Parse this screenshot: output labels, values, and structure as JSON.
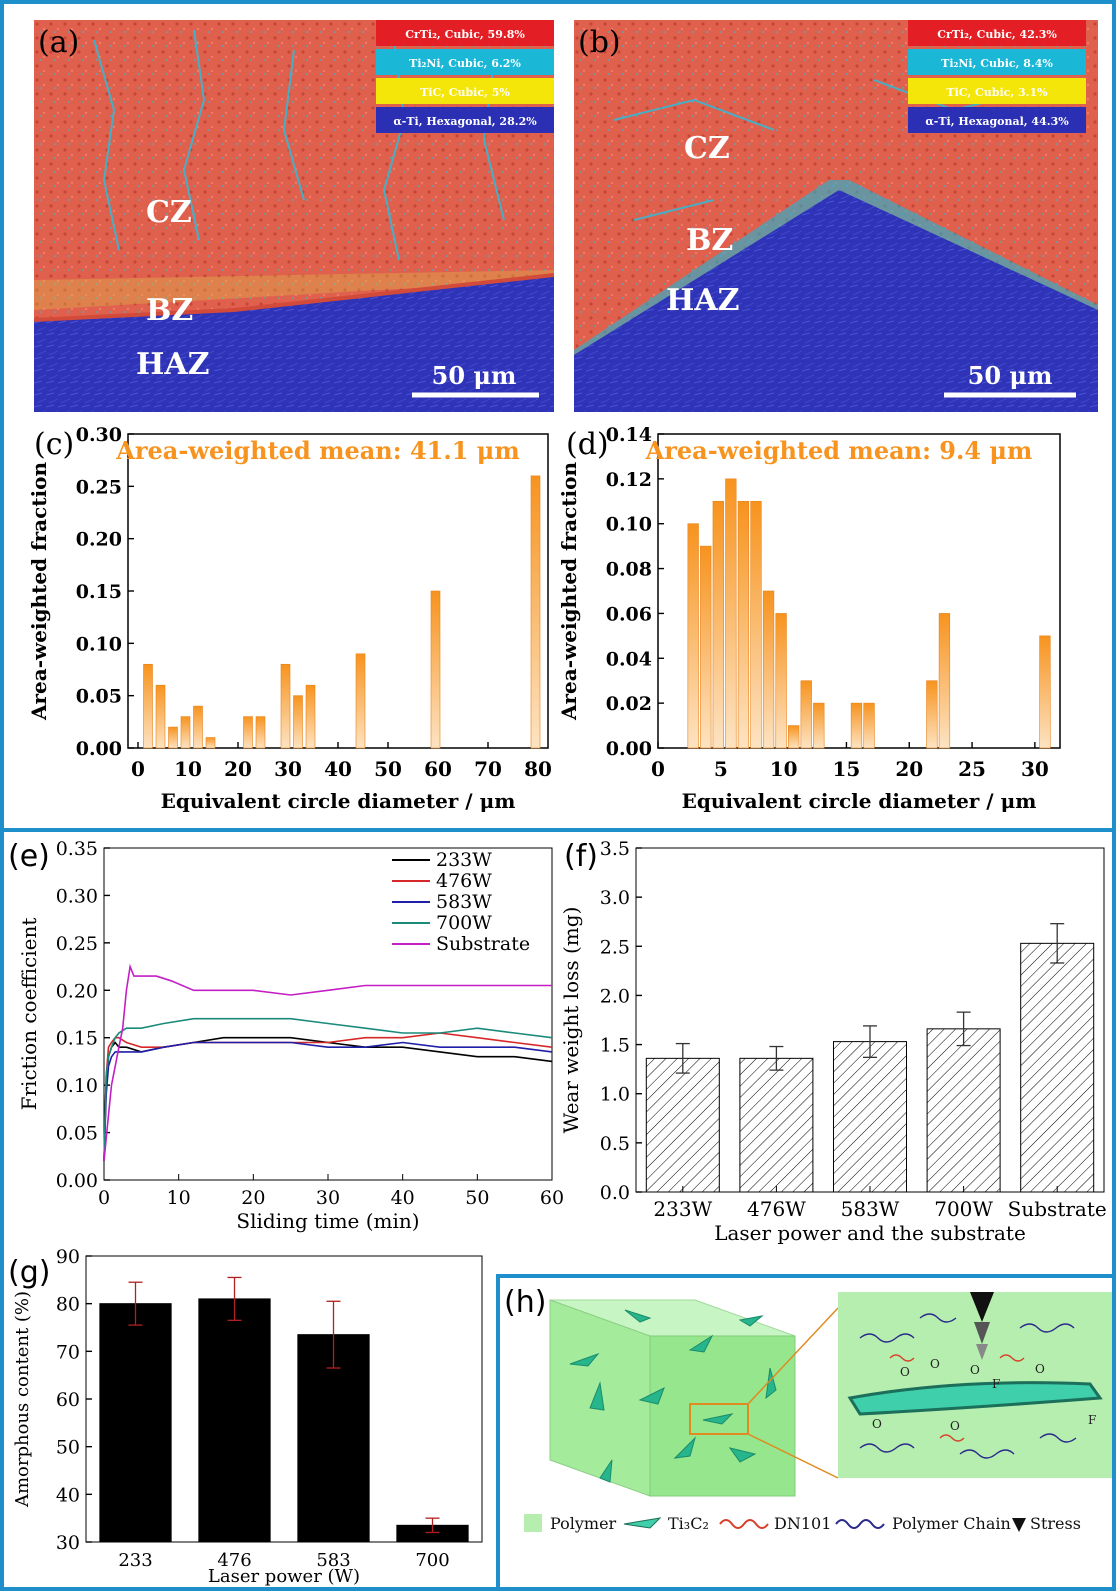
{
  "panels": {
    "a": {
      "letter": "(a)",
      "legend": [
        {
          "label": "CrTi₂, Cubic, 59.8%",
          "color": "#e31e24"
        },
        {
          "label": "Ti₂Ni, Cubic, 6.2%",
          "color": "#1ab8d6"
        },
        {
          "label": "TiC, Cubic, 5%",
          "color": "#f5e60a"
        },
        {
          "label": "α-Ti, Hexagonal, 28.2%",
          "color": "#2b2fb3"
        }
      ],
      "zones": {
        "cz": "CZ",
        "bz": "BZ",
        "haz": "HAZ"
      },
      "scale": "50 μm"
    },
    "b": {
      "letter": "(b)",
      "legend": [
        {
          "label": "CrTi₂, Cubic, 42.3%",
          "color": "#e31e24"
        },
        {
          "label": "Ti₂Ni, Cubic, 8.4%",
          "color": "#1ab8d6"
        },
        {
          "label": "TiC, Cubic, 3.1%",
          "color": "#f5e60a"
        },
        {
          "label": "α-Ti, Hexagonal, 44.3%",
          "color": "#2b2fb3"
        }
      ],
      "zones": {
        "cz": "CZ",
        "bz": "BZ",
        "haz": "HAZ"
      },
      "scale": "50 μm"
    },
    "c": {
      "letter": "(c)"
    },
    "d": {
      "letter": "(d)"
    },
    "e": {
      "letter": "(e)"
    },
    "f": {
      "letter": "(f)"
    },
    "g": {
      "letter": "(g)"
    },
    "h": {
      "letter": "(h)",
      "legend": [
        {
          "label": "Polymer",
          "icon": "polymer-swatch-icon"
        },
        {
          "label": "Ti₃C₂",
          "icon": "mxene-flake-icon"
        },
        {
          "label": "DN101",
          "icon": "dn101-chain-icon"
        },
        {
          "label": "Polymer Chain",
          "icon": "polymer-chain-icon"
        },
        {
          "label": "Stress",
          "icon": "stress-arrow-icon"
        }
      ],
      "atoms": {
        "o": "O",
        "f": "F"
      }
    }
  },
  "chart_data": [
    {
      "id": "c",
      "type": "bar",
      "title": "Area-weighted mean: 41.1 μm",
      "xlabel": "Equivalent circle diameter / μm",
      "ylabel": "Area-weighted fraction",
      "xlim": [
        -2,
        82
      ],
      "ylim": [
        0,
        0.3
      ],
      "xticks": [
        0,
        10,
        20,
        30,
        40,
        50,
        60,
        70,
        80
      ],
      "yticks": [
        0.0,
        0.05,
        0.1,
        0.15,
        0.2,
        0.25,
        0.3
      ],
      "bar_width": 1.8,
      "color": "#f7931e",
      "x": [
        2,
        4.5,
        7,
        9.5,
        12,
        14.5,
        17,
        22,
        24.5,
        29.5,
        32,
        34.5,
        44.5,
        59.5,
        79.5
      ],
      "values": [
        0.08,
        0.06,
        0.02,
        0.03,
        0.04,
        0.01,
        0,
        0.03,
        0.03,
        0.08,
        0.05,
        0.06,
        0.09,
        0.15,
        0.26
      ]
    },
    {
      "id": "d",
      "type": "bar",
      "title": "Area-weighted mean: 9.4 μm",
      "xlabel": "Equivalent circle diameter / μm",
      "ylabel": "Area-weighted fraction",
      "xlim": [
        0,
        32
      ],
      "ylim": [
        0,
        0.14
      ],
      "xticks": [
        0,
        5,
        10,
        15,
        20,
        25,
        30
      ],
      "yticks": [
        0.0,
        0.02,
        0.04,
        0.06,
        0.08,
        0.1,
        0.12,
        0.14
      ],
      "bar_width": 0.85,
      "color": "#f7931e",
      "x": [
        2.8,
        3.8,
        4.8,
        5.8,
        6.8,
        7.8,
        8.8,
        9.8,
        10.8,
        11.8,
        12.8,
        13.8,
        15.8,
        16.8,
        21.8,
        22.8,
        30.8
      ],
      "values": [
        0.1,
        0.09,
        0.11,
        0.12,
        0.11,
        0.11,
        0.07,
        0.06,
        0.01,
        0.03,
        0.02,
        0,
        0.02,
        0.02,
        0.03,
        0.06,
        0.05
      ]
    },
    {
      "id": "e",
      "type": "line",
      "xlabel": "Sliding time (min)",
      "ylabel": "Friction coefficient",
      "xlim": [
        0,
        60
      ],
      "ylim": [
        0,
        0.35
      ],
      "xticks": [
        0,
        10,
        20,
        30,
        40,
        50,
        60
      ],
      "yticks": [
        0,
        0.05,
        0.1,
        0.15,
        0.2,
        0.25,
        0.3,
        0.35
      ],
      "legend_position": "top-right",
      "series": [
        {
          "name": "233W",
          "color": "#000000",
          "x": [
            0,
            0.3,
            0.6,
            1,
            1.5,
            2,
            3,
            5,
            8,
            12,
            16,
            20,
            25,
            30,
            35,
            40,
            45,
            50,
            55,
            60
          ],
          "values": [
            0.02,
            0.1,
            0.13,
            0.14,
            0.145,
            0.14,
            0.14,
            0.135,
            0.14,
            0.145,
            0.15,
            0.15,
            0.15,
            0.145,
            0.14,
            0.14,
            0.135,
            0.13,
            0.13,
            0.125
          ]
        },
        {
          "name": "476W",
          "color": "#d62828",
          "x": [
            0,
            0.3,
            0.6,
            1,
            1.5,
            2,
            3,
            5,
            8,
            12,
            16,
            20,
            25,
            30,
            35,
            40,
            45,
            50,
            55,
            60
          ],
          "values": [
            0.02,
            0.11,
            0.14,
            0.145,
            0.15,
            0.15,
            0.145,
            0.14,
            0.14,
            0.145,
            0.145,
            0.145,
            0.145,
            0.145,
            0.15,
            0.15,
            0.155,
            0.15,
            0.145,
            0.14
          ]
        },
        {
          "name": "583W",
          "color": "#1f1fa8",
          "x": [
            0,
            0.3,
            0.6,
            1,
            1.5,
            2,
            3,
            5,
            8,
            12,
            16,
            20,
            25,
            30,
            35,
            40,
            45,
            50,
            55,
            60
          ],
          "values": [
            0.02,
            0.09,
            0.12,
            0.13,
            0.135,
            0.135,
            0.135,
            0.135,
            0.14,
            0.145,
            0.145,
            0.145,
            0.145,
            0.14,
            0.14,
            0.145,
            0.14,
            0.14,
            0.14,
            0.135
          ]
        },
        {
          "name": "700W",
          "color": "#1a8a7a",
          "x": [
            0,
            0.3,
            0.6,
            1,
            1.5,
            2,
            3,
            5,
            8,
            12,
            16,
            20,
            25,
            30,
            35,
            40,
            45,
            50,
            55,
            60
          ],
          "values": [
            0.02,
            0.11,
            0.13,
            0.14,
            0.15,
            0.155,
            0.16,
            0.16,
            0.165,
            0.17,
            0.17,
            0.17,
            0.17,
            0.165,
            0.16,
            0.155,
            0.155,
            0.16,
            0.155,
            0.15
          ]
        },
        {
          "name": "Substrate",
          "color": "#c41fc4",
          "x": [
            0,
            0.5,
            1,
            1.5,
            2,
            2.5,
            3,
            3.5,
            4,
            5,
            7,
            9,
            12,
            16,
            20,
            25,
            30,
            35,
            40,
            45,
            50,
            55,
            60
          ],
          "values": [
            0.02,
            0.06,
            0.1,
            0.12,
            0.14,
            0.16,
            0.2,
            0.225,
            0.215,
            0.215,
            0.215,
            0.21,
            0.2,
            0.2,
            0.2,
            0.195,
            0.2,
            0.205,
            0.205,
            0.205,
            0.205,
            0.205,
            0.205
          ]
        }
      ]
    },
    {
      "id": "f",
      "type": "bar",
      "xlabel": "Laser power and the substrate",
      "ylabel": "Wear weight loss (mg)",
      "ylim": [
        0,
        3.5
      ],
      "yticks": [
        0,
        0.5,
        1.0,
        1.5,
        2.0,
        2.5,
        3.0,
        3.5
      ],
      "categories": [
        "233W",
        "476W",
        "583W",
        "700W",
        "Substrate"
      ],
      "values": [
        1.36,
        1.36,
        1.53,
        1.66,
        2.53
      ],
      "errors": [
        0.15,
        0.12,
        0.16,
        0.17,
        0.2
      ]
    },
    {
      "id": "g",
      "type": "bar",
      "xlabel": "Laser power (W)",
      "ylabel": "Amorphous content (%)",
      "ylim": [
        30,
        90
      ],
      "yticks": [
        30,
        40,
        50,
        60,
        70,
        80,
        90
      ],
      "categories": [
        "233",
        "476",
        "583",
        "700"
      ],
      "values": [
        80,
        81,
        73.5,
        33.5
      ],
      "errors": [
        4.5,
        4.5,
        7,
        1.5
      ]
    }
  ]
}
